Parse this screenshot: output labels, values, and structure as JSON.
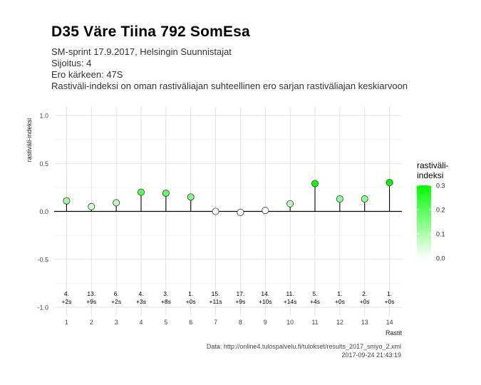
{
  "header": {
    "title": "D35 Väre Tiina 792 SomEsa",
    "subtitle_lines": [
      "SM-sprint 17.9.2017, Helsingin Suunnistajat",
      "Sijoitus: 4",
      "Ero kärkeen: 47S",
      "Rastiväli-indeksi on oman rastiväliajan suhteellinen ero sarjan rastiväliajan keskiarvoon"
    ]
  },
  "caption": {
    "source": "Data: http://online4.tulospalvelu.fi/tulokset/results_2017_smyo_2.xml",
    "timestamp": "2017-09-24 21:43:19"
  },
  "legend": {
    "title_lines": [
      "rastiväli-",
      "indeksi"
    ],
    "ticks": [
      "0.3",
      "0.2",
      "0.1",
      "0.0"
    ],
    "color_low": "#ffffff",
    "color_high": "#00ff00"
  },
  "chart_data": {
    "type": "scatter",
    "xlabel": "Rastit",
    "ylabel": "rastiväli-indeksi",
    "ylim": [
      -1.0,
      1.0
    ],
    "yticks": [
      1.0,
      0.5,
      0.0,
      -0.5,
      -1.0
    ],
    "ytick_labels": [
      "1.0",
      "0.5",
      "0.0",
      "-0.5",
      "-1.0"
    ],
    "x": [
      1,
      2,
      3,
      4,
      5,
      6,
      7,
      8,
      9,
      10,
      11,
      12,
      13,
      14
    ],
    "values": [
      0.11,
      0.05,
      0.09,
      0.2,
      0.19,
      0.15,
      0.0,
      -0.01,
      0.01,
      0.08,
      0.29,
      0.13,
      0.13,
      0.3
    ],
    "rank_labels": [
      "4.",
      "13.",
      "6.",
      "4.",
      "3.",
      "1.",
      "15.",
      "17.",
      "14.",
      "11.",
      "5.",
      "1.",
      "2.",
      "1."
    ],
    "gap_labels": [
      "+2s",
      "+9s",
      "+2s",
      "+3s",
      "+8s",
      "+0s",
      "+11s",
      "+9s",
      "+10s",
      "+14s",
      "+4s",
      "+0s",
      "+0s",
      "+0s"
    ],
    "color_scale": {
      "min": 0.0,
      "max": 0.3
    },
    "grid": true,
    "legend_position": "right"
  }
}
